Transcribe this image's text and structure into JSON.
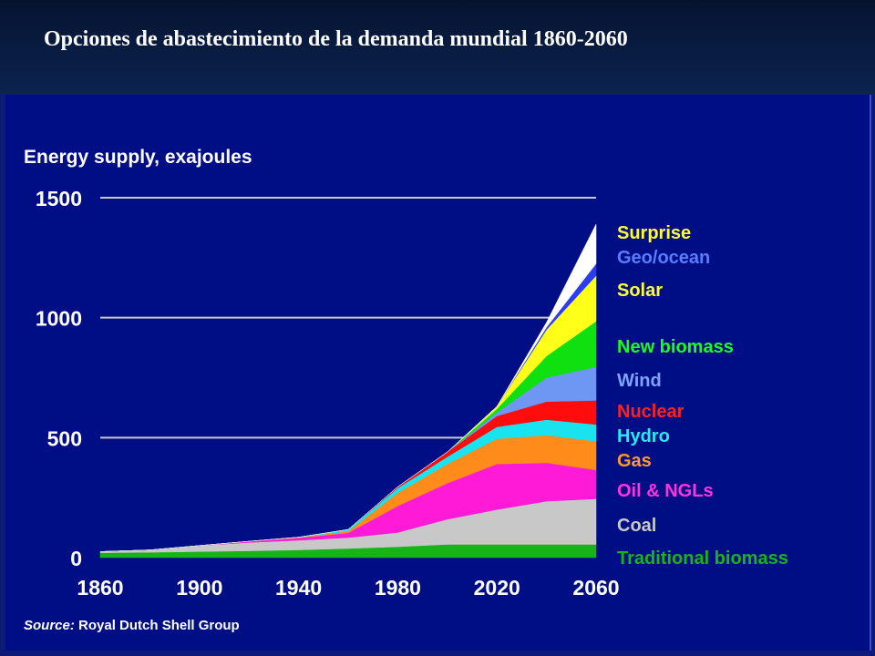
{
  "slide_title": "Opciones de abastecimiento de la demanda mundial 1860-2060",
  "colors": {
    "background": "#000e86",
    "header": "#0b2350",
    "text": "#ffffff",
    "gridline": "#c8c8c8"
  },
  "chart_data": {
    "type": "area",
    "stacked": true,
    "title": "Energy supply, exajoules",
    "xlabel": "",
    "ylabel": "",
    "ylim": [
      0,
      1500
    ],
    "xlim": [
      1860,
      2060
    ],
    "grid": "horizontal",
    "legend_position": "right",
    "x_ticks": [
      "1860",
      "1900",
      "1940",
      "1980",
      "2020",
      "2060"
    ],
    "y_ticks": [
      "1500",
      "1000",
      "500",
      "0"
    ],
    "x": [
      1860,
      1880,
      1900,
      1920,
      1940,
      1960,
      1980,
      2000,
      2020,
      2040,
      2060
    ],
    "series": [
      {
        "name": "Traditional biomass",
        "color": "#16b416",
        "values": [
          20,
          22,
          25,
          28,
          32,
          38,
          45,
          55,
          55,
          55,
          55
        ]
      },
      {
        "name": "Coal",
        "color": "#c8c8c8",
        "values": [
          5,
          10,
          25,
          35,
          40,
          45,
          60,
          105,
          145,
          180,
          190
        ]
      },
      {
        "name": "Oil & NGLs",
        "color": "#ff1ad7",
        "values": [
          0,
          0,
          0,
          5,
          10,
          20,
          110,
          150,
          190,
          160,
          120
        ]
      },
      {
        "name": "Gas",
        "color": "#ff8c1a",
        "values": [
          0,
          0,
          0,
          0,
          2,
          7,
          55,
          80,
          105,
          115,
          120
        ]
      },
      {
        "name": "Hydro",
        "color": "#19e3ee",
        "values": [
          0,
          0,
          0,
          0,
          1,
          7,
          20,
          30,
          50,
          65,
          70
        ]
      },
      {
        "name": "Nuclear",
        "color": "#ff0d0d",
        "values": [
          0,
          0,
          0,
          0,
          0,
          0,
          5,
          20,
          45,
          75,
          100
        ]
      },
      {
        "name": "Wind",
        "color": "#6d97f3",
        "values": [
          0,
          0,
          0,
          0,
          0,
          0,
          0,
          0,
          15,
          100,
          140
        ]
      },
      {
        "name": "New biomass",
        "color": "#10e010",
        "values": [
          0,
          0,
          0,
          0,
          0,
          0,
          0,
          0,
          15,
          90,
          190
        ]
      },
      {
        "name": "Solar",
        "color": "#ffff1a",
        "values": [
          0,
          0,
          0,
          0,
          0,
          0,
          0,
          0,
          10,
          110,
          190
        ]
      },
      {
        "name": "Geo/ocean",
        "color": "#2c3cf0",
        "values": [
          0,
          0,
          0,
          0,
          0,
          0,
          0,
          0,
          0,
          10,
          50
        ]
      },
      {
        "name": "Surprise",
        "color": "#ffffff",
        "values": [
          0,
          0,
          0,
          0,
          0,
          0,
          0,
          0,
          0,
          20,
          165
        ]
      }
    ],
    "legend_label_colors": {
      "Surprise": "#ffff33",
      "Geo/ocean": "#5a7cff",
      "Solar": "#ffff33",
      "New biomass": "#1aff1a",
      "Wind": "#7ea4ff",
      "Nuclear": "#ff2020",
      "Hydro": "#26eaf5",
      "Gas": "#ff9a2a",
      "Oil & NGLs": "#ff33e0",
      "Coal": "#c8c8c8",
      "Traditional biomass": "#1ab41a"
    },
    "source_label": "Source:",
    "source_text": " Royal Dutch  Shell Group"
  }
}
